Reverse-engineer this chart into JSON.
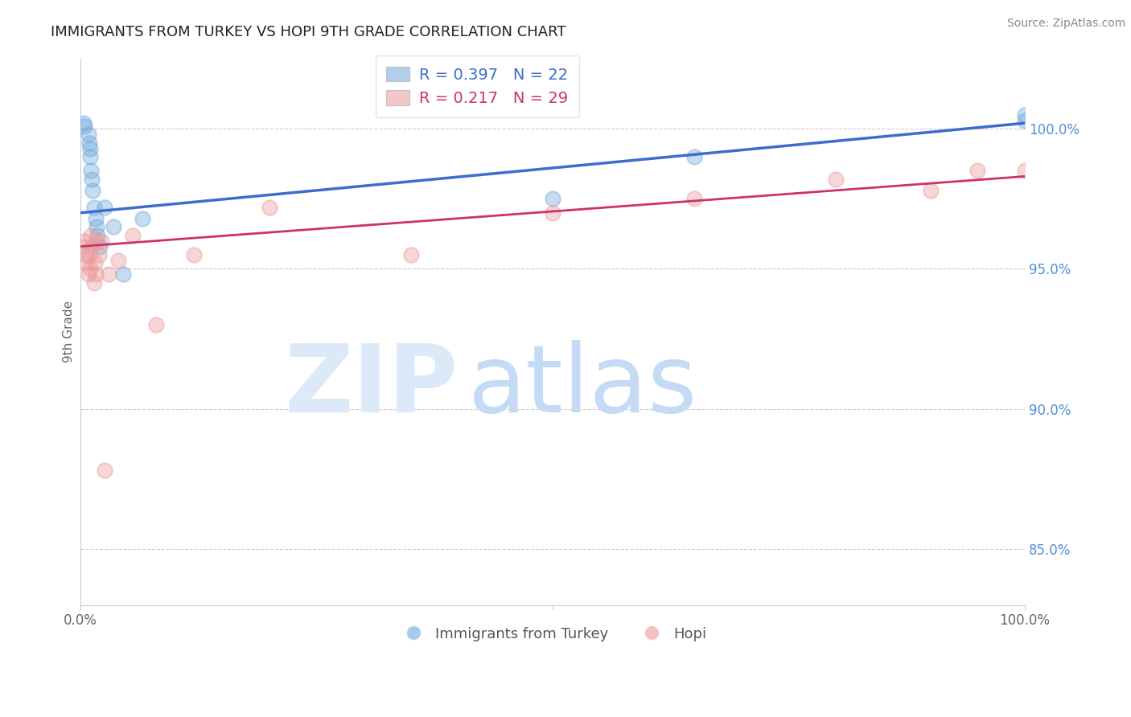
{
  "title": "IMMIGRANTS FROM TURKEY VS HOPI 9TH GRADE CORRELATION CHART",
  "source": "Source: ZipAtlas.com",
  "ylabel": "9th Grade",
  "xlim": [
    0.0,
    100.0
  ],
  "ylim": [
    83.0,
    102.5
  ],
  "yticks": [
    85.0,
    90.0,
    95.0,
    100.0
  ],
  "ytick_labels": [
    "85.0%",
    "90.0%",
    "95.0%",
    "100.0%"
  ],
  "blue_R": 0.397,
  "blue_N": 22,
  "pink_R": 0.217,
  "pink_N": 29,
  "blue_color": "#6fa8dc",
  "pink_color": "#ea9999",
  "blue_line_color": "#3d6dcc",
  "pink_line_color": "#cc3366",
  "legend_label_blue": "Immigrants from Turkey",
  "legend_label_pink": "Hopi",
  "blue_x": [
    0.3,
    0.4,
    0.8,
    0.9,
    1.0,
    1.0,
    1.1,
    1.2,
    1.3,
    1.4,
    1.6,
    1.7,
    1.8,
    2.0,
    2.5,
    3.5,
    4.5,
    6.5,
    50.0,
    65.0,
    100.0,
    100.0
  ],
  "blue_y": [
    100.2,
    100.1,
    99.8,
    99.5,
    99.3,
    99.0,
    98.5,
    98.2,
    97.8,
    97.2,
    96.8,
    96.5,
    96.2,
    95.8,
    97.2,
    96.5,
    94.8,
    96.8,
    97.5,
    99.0,
    100.5,
    100.3
  ],
  "pink_x": [
    0.2,
    0.4,
    0.5,
    0.6,
    0.8,
    0.9,
    1.0,
    1.1,
    1.2,
    1.4,
    1.5,
    1.6,
    1.7,
    1.9,
    2.2,
    2.5,
    3.0,
    4.0,
    5.5,
    8.0,
    12.0,
    20.0,
    35.0,
    50.0,
    65.0,
    80.0,
    90.0,
    95.0,
    100.0
  ],
  "pink_y": [
    95.8,
    96.0,
    95.5,
    95.2,
    94.8,
    95.5,
    95.0,
    96.2,
    95.8,
    94.5,
    95.2,
    94.8,
    96.0,
    95.5,
    96.0,
    87.8,
    94.8,
    95.3,
    96.2,
    93.0,
    95.5,
    97.2,
    95.5,
    97.0,
    97.5,
    98.2,
    97.8,
    98.5,
    98.5
  ],
  "blue_line_start_y": 97.0,
  "blue_line_end_y": 100.2,
  "pink_line_start_y": 95.8,
  "pink_line_end_y": 98.3,
  "watermark_zip_color": "#dce9f8",
  "watermark_atlas_color": "#c5daf5",
  "background_color": "#ffffff",
  "grid_color": "#cccccc"
}
